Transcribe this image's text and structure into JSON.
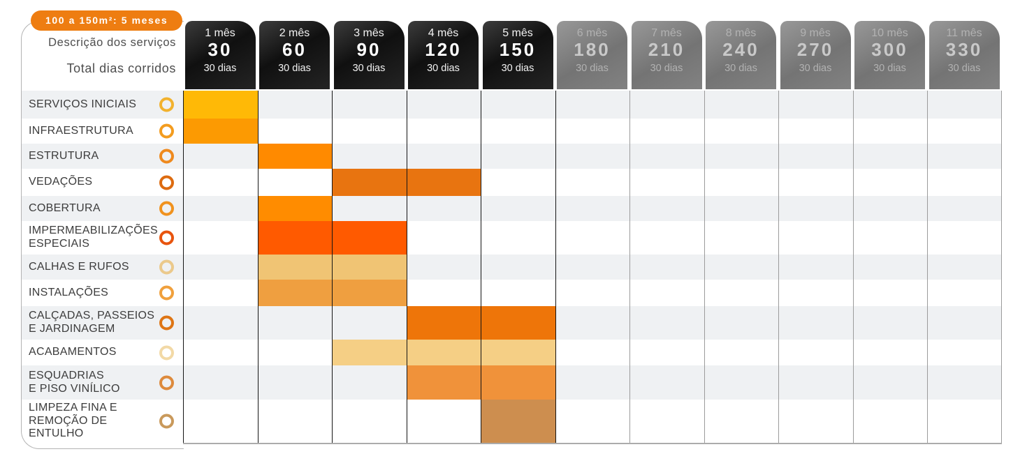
{
  "badge": {
    "label": "100 a 150m²: 5 meses",
    "bg_color": "#EE7D11"
  },
  "panel": {
    "line1": "Descrição dos serviços",
    "line2": "Total dias corridos"
  },
  "columns": [
    {
      "month_label": "1 mês",
      "cumulative_days": "30",
      "duration_label": "30 dias",
      "active": true
    },
    {
      "month_label": "2 mês",
      "cumulative_days": "60",
      "duration_label": "30 dias",
      "active": true
    },
    {
      "month_label": "3 mês",
      "cumulative_days": "90",
      "duration_label": "30 dias",
      "active": true
    },
    {
      "month_label": "4 mês",
      "cumulative_days": "120",
      "duration_label": "30 dias",
      "active": true
    },
    {
      "month_label": "5 mês",
      "cumulative_days": "150",
      "duration_label": "30 dias",
      "active": true
    },
    {
      "month_label": "6 mês",
      "cumulative_days": "180",
      "duration_label": "30 dias",
      "active": false
    },
    {
      "month_label": "7 mês",
      "cumulative_days": "210",
      "duration_label": "30 dias",
      "active": false
    },
    {
      "month_label": "8 mês",
      "cumulative_days": "240",
      "duration_label": "30 dias",
      "active": false
    },
    {
      "month_label": "9 mês",
      "cumulative_days": "270",
      "duration_label": "30 dias",
      "active": false
    },
    {
      "month_label": "10 mês",
      "cumulative_days": "300",
      "duration_label": "30 dias",
      "active": false
    },
    {
      "month_label": "11 mês",
      "cumulative_days": "330",
      "duration_label": "30 dias",
      "active": false
    }
  ],
  "chart_data": {
    "type": "table",
    "title": "100 a 150m²: 5 meses",
    "x_categories_months": [
      1,
      2,
      3,
      4,
      5,
      6,
      7,
      8,
      9,
      10,
      11
    ],
    "x_cumulative_days": [
      30,
      60,
      90,
      120,
      150,
      180,
      210,
      240,
      270,
      300,
      330
    ],
    "days_per_month": 30,
    "active_months": 5,
    "rows": [
      {
        "service": "SERVIÇOS INICIAIS",
        "label_lines": [
          "SERVIÇOS INICIAIS"
        ],
        "months": [
          1
        ],
        "bar_color": "#FFB906",
        "ring_color": "#F2B22E"
      },
      {
        "service": "INFRAESTRUTURA",
        "label_lines": [
          "INFRAESTRUTURA"
        ],
        "months": [
          1
        ],
        "bar_color": "#FC9A02",
        "ring_color": "#F39C1F"
      },
      {
        "service": "ESTRUTURA",
        "label_lines": [
          "ESTRUTURA"
        ],
        "months": [
          2
        ],
        "bar_color": "#FF8A00",
        "ring_color": "#EF8A1E"
      },
      {
        "service": "VEDAÇÕES",
        "label_lines": [
          "VEDAÇÕES"
        ],
        "months": [
          3,
          4
        ],
        "bar_color": "#E87410",
        "ring_color": "#DD6B10"
      },
      {
        "service": "COBERTURA",
        "label_lines": [
          "COBERTURA"
        ],
        "months": [
          2
        ],
        "bar_color": "#FF8C00",
        "ring_color": "#F0921E"
      },
      {
        "service": "IMPERMEABILIZAÇÕES ESPECIAIS",
        "label_lines": [
          "IMPERMEABILIZAÇÕES",
          "ESPECIAIS"
        ],
        "months": [
          2,
          3
        ],
        "bar_color": "#FF5A00",
        "ring_color": "#E8540E"
      },
      {
        "service": "CALHAS E RUFOS",
        "label_lines": [
          "CALHAS E RUFOS"
        ],
        "months": [
          2,
          3
        ],
        "bar_color": "#F0C474",
        "ring_color": "#EBC98B"
      },
      {
        "service": "INSTALAÇÕES",
        "label_lines": [
          "INSTALAÇÕES"
        ],
        "months": [
          2,
          3
        ],
        "bar_color": "#EF9F40",
        "ring_color": "#F0A03C"
      },
      {
        "service": "CALÇADAS, PASSEIOS E JARDINAGEM",
        "label_lines": [
          "CALÇADAS, PASSEIOS",
          "E JARDINAGEM"
        ],
        "months": [
          4,
          5
        ],
        "bar_color": "#EE7509",
        "ring_color": "#DE7514"
      },
      {
        "service": "ACABAMENTOS",
        "label_lines": [
          "ACABAMENTOS"
        ],
        "months": [
          3,
          4,
          5
        ],
        "bar_color": "#F5CF85",
        "ring_color": "#F2D9A6"
      },
      {
        "service": "ESQUADRIAS E PISO VINÍLICO",
        "label_lines": [
          "ESQUADRIAS",
          "E PISO VINÍLICO"
        ],
        "months": [
          4,
          5
        ],
        "bar_color": "#F0923A",
        "ring_color": "#DD8A3C"
      },
      {
        "service": "LIMPEZA FINA E REMOÇÃO DE ENTULHO",
        "label_lines": [
          "LIMPEZA FINA E",
          "REMOÇÃO DE ENTULHO"
        ],
        "months": [
          5
        ],
        "bar_color": "#CD8E4F",
        "ring_color": "#C9995B"
      }
    ]
  }
}
